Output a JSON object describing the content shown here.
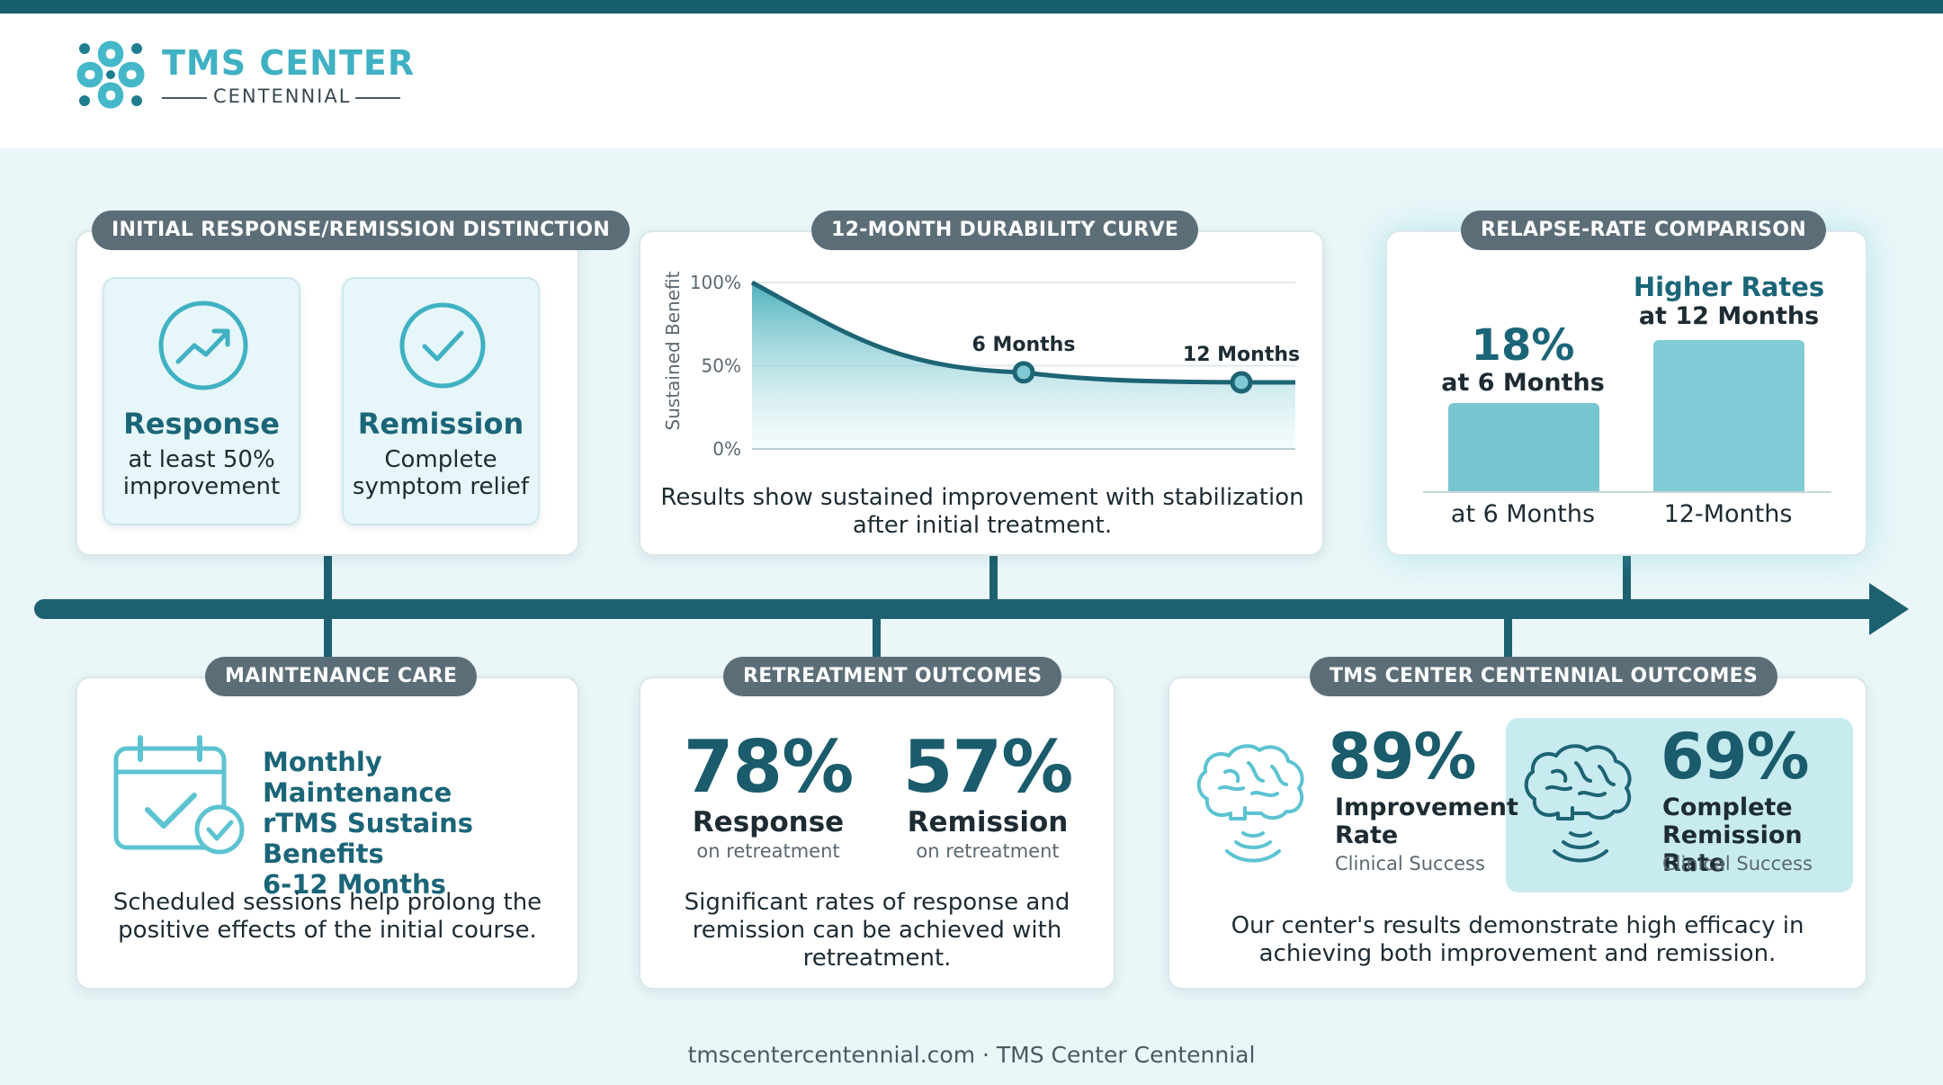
{
  "brand": {
    "title": "TMS CENTER",
    "subtitle": "CENTENNIAL"
  },
  "colors": {
    "primary": "#1b6578",
    "accent": "#3fb1c3",
    "pill": "#5b6e78",
    "timeline": "#1d6070",
    "background": "#eaf6f8"
  },
  "initial": {
    "pill": "INITIAL RESPONSE/REMISSION DISTINCTION",
    "response": {
      "icon": "trend-up-icon",
      "title": "Response",
      "desc1": "at least 50%",
      "desc2": "improvement"
    },
    "remission": {
      "icon": "check-circle-icon",
      "title": "Remission",
      "desc1": "Complete",
      "desc2": "symptom relief"
    }
  },
  "durability": {
    "pill": "12-MONTH DURABILITY CURVE",
    "caption1": "Results show sustained improvement with stabilization",
    "caption2": "after initial treatment."
  },
  "chart_data": [
    {
      "type": "area",
      "ylabel": "Sustained Benefit",
      "yticks": [
        "100%",
        "50%",
        "0%"
      ],
      "ylim": [
        0,
        100
      ],
      "grid": true,
      "x": [
        0,
        6,
        12
      ],
      "values": [
        100,
        46,
        40
      ],
      "annotations": [
        {
          "label": "6 Months",
          "x": 6,
          "y": 46
        },
        {
          "label": "12 Months",
          "x": 12,
          "y": 40
        }
      ]
    },
    {
      "type": "bar",
      "categories": [
        "at 6 Months",
        "12-Months"
      ],
      "values": [
        18,
        null
      ],
      "data_labels": [
        {
          "value": "18%",
          "label": "at 6 Months"
        },
        {
          "value": "Higher Rates",
          "label": "at 12 Months"
        }
      ]
    }
  ],
  "relapse": {
    "pill": "RELAPSE-RATE COMPARISON",
    "left_value": "18%",
    "left_label": "at 6 Months",
    "right_value": "Higher Rates",
    "right_label": "at 12 Months",
    "axis_left": "at 6 Months",
    "axis_right": "12-Months"
  },
  "maintenance": {
    "pill": "MAINTENANCE CARE",
    "icon": "calendar-check-icon",
    "line1": "Monthly Maintenance",
    "line2": "rTMS Sustains Benefits",
    "line3": "6-12 Months",
    "caption1": "Scheduled sessions help prolong the",
    "caption2": "positive effects of the initial course."
  },
  "retreatment": {
    "pill": "RETREATMENT OUTCOMES",
    "response_value": "78%",
    "response_label": "Response",
    "response_sub": "on retreatment",
    "remission_value": "57%",
    "remission_label": "Remission",
    "remission_sub": "on retreatment",
    "caption1": "Significant rates of response and",
    "caption2": "remission can be achieved with",
    "caption3": "retreatment."
  },
  "outcomes": {
    "pill": "TMS CENTER CENTENNIAL OUTCOMES",
    "improvement_value": "89%",
    "improvement_label1": "Improvement",
    "improvement_label2": "Rate",
    "improvement_sub": "Clinical Success",
    "remission_value": "69%",
    "remission_label1": "Complete",
    "remission_label2": "Remission Rate",
    "remission_sub": "Clinical Success",
    "caption1": "Our center's results demonstrate high efficacy in",
    "caption2": "achieving both improvement and remission."
  },
  "footer": "tmscentercentennial.com · TMS Center Centennial"
}
